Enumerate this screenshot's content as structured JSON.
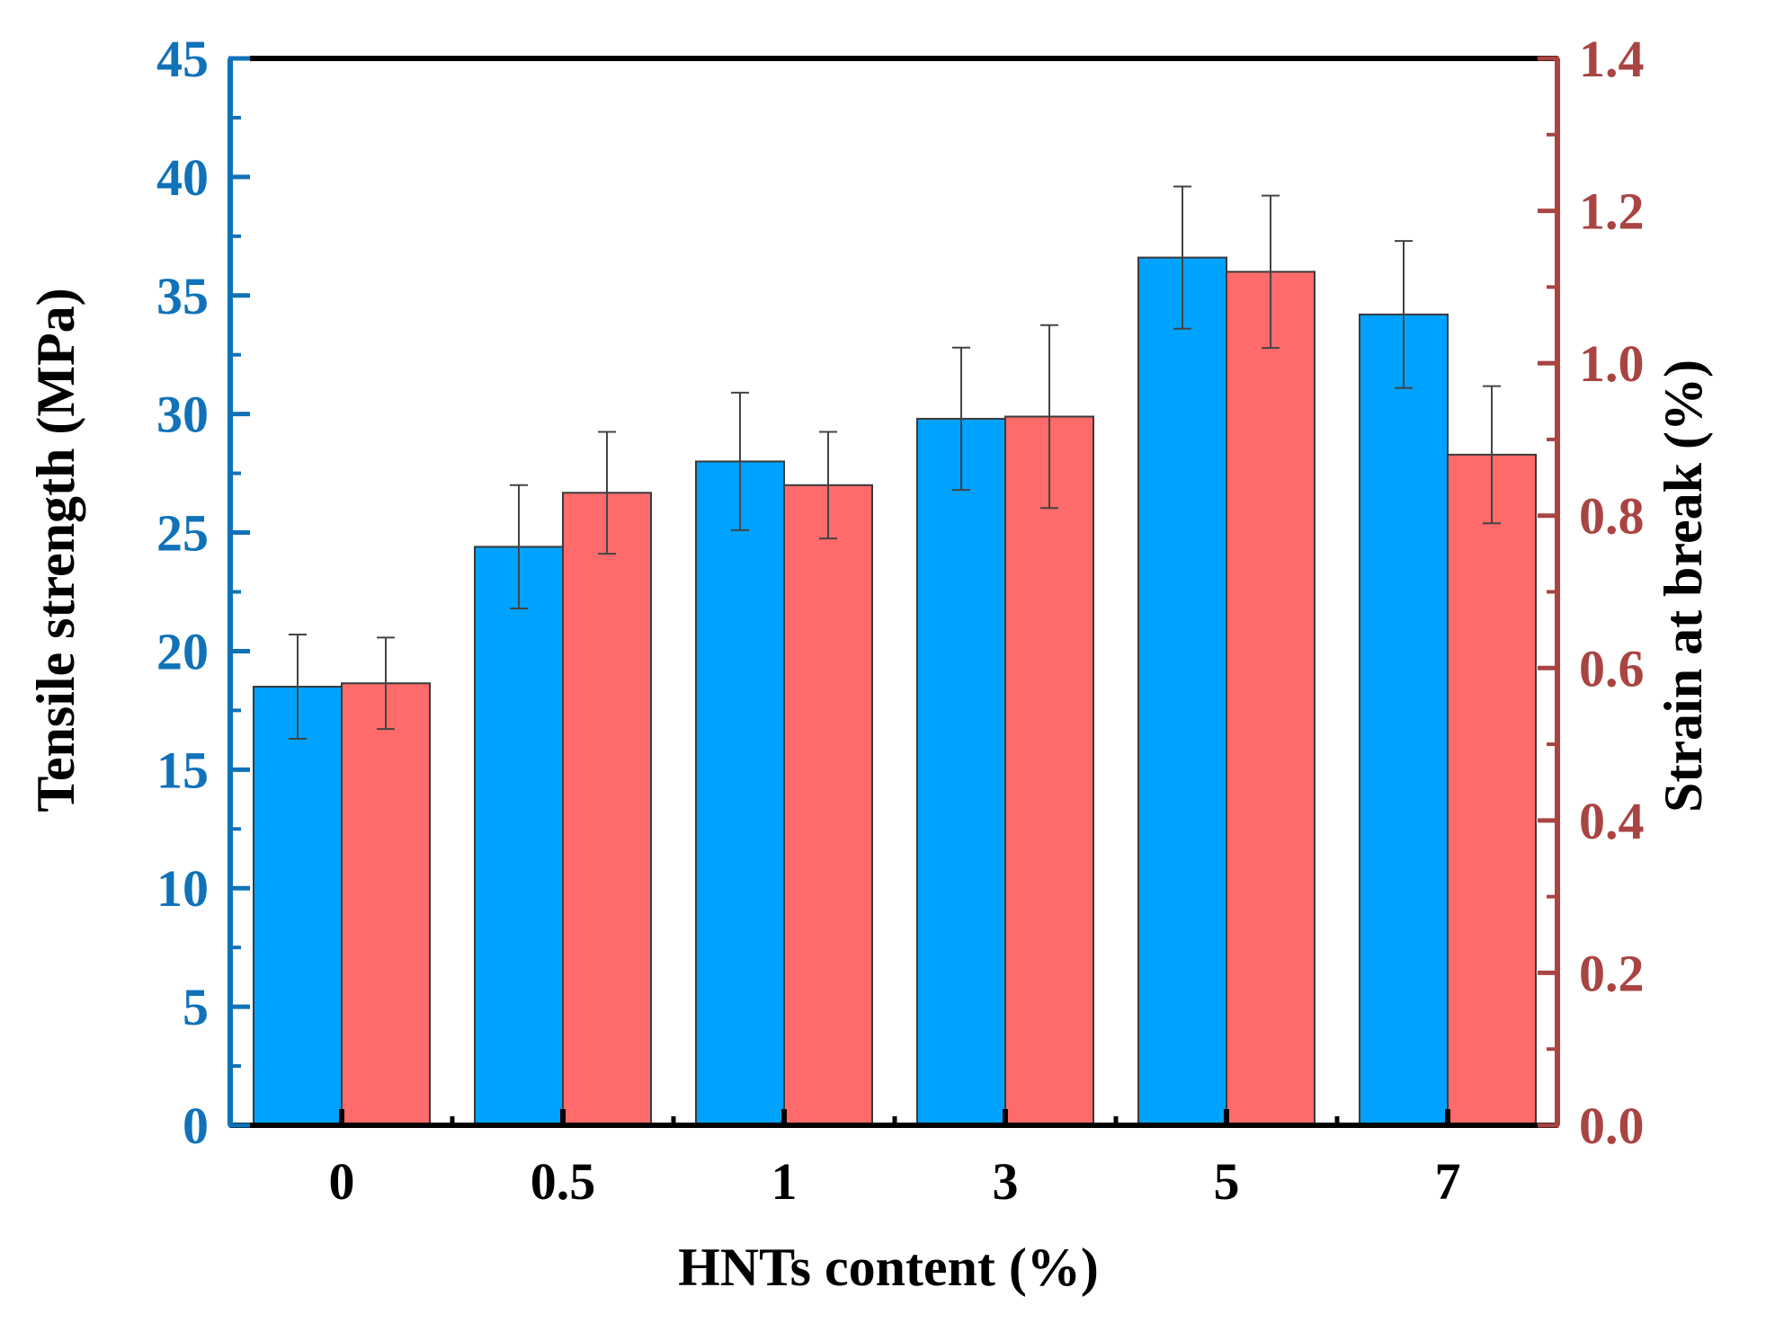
{
  "chart_data": {
    "type": "bar",
    "categories": [
      "0",
      "0.5",
      "1",
      "3",
      "5",
      "7"
    ],
    "xlabel": "HNTs content (%)",
    "series": [
      {
        "name": "Tensile strength (MPa)",
        "axis": "left",
        "color": "#00A2FF",
        "values": [
          18.5,
          24.4,
          28.0,
          29.8,
          36.6,
          34.2
        ],
        "errors": [
          2.2,
          2.6,
          2.9,
          3.0,
          3.0,
          3.1
        ]
      },
      {
        "name": "Strain at break (%)",
        "axis": "right",
        "color": "#FF6B6B",
        "values": [
          0.58,
          0.83,
          0.84,
          0.93,
          1.12,
          0.88
        ],
        "errors": [
          0.06,
          0.08,
          0.07,
          0.12,
          0.1,
          0.09
        ]
      }
    ],
    "y_left": {
      "label": "Tensile strength (MPa)",
      "ylim": [
        0,
        45
      ],
      "ticks": [
        "0",
        "5",
        "10",
        "15",
        "20",
        "25",
        "30",
        "35",
        "40",
        "45"
      ],
      "color": "#1072B8"
    },
    "y_right": {
      "label": "Strain at break (%)",
      "ylim": [
        0,
        1.4
      ],
      "ticks": [
        "0.0",
        "0.2",
        "0.4",
        "0.6",
        "0.8",
        "1.0",
        "1.2",
        "1.4"
      ],
      "color": "#A94442"
    },
    "grid": false
  }
}
